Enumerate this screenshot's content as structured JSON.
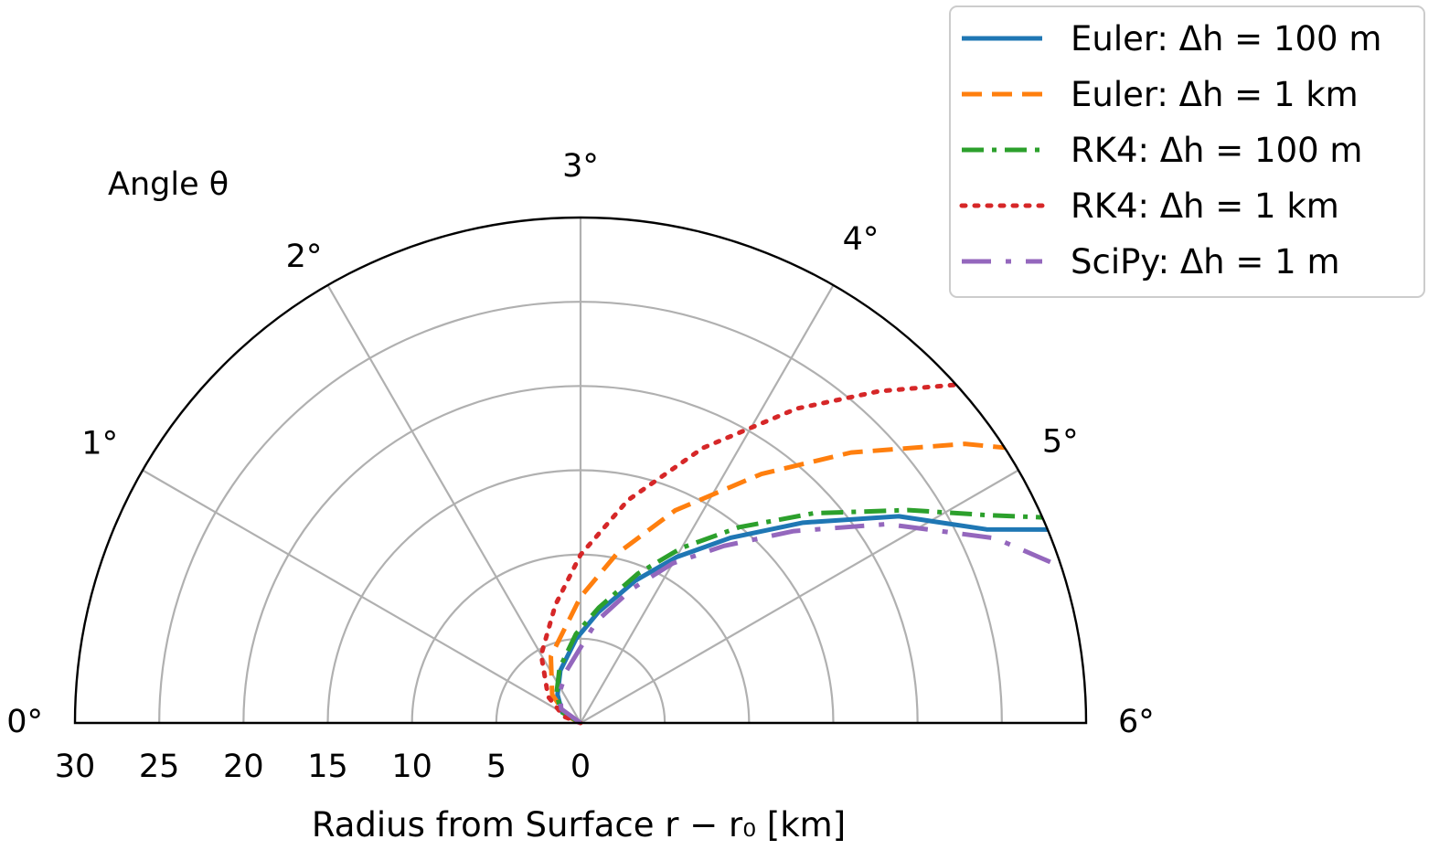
{
  "chart_data": {
    "type": "line",
    "projection": "polar",
    "theta_unit": "degree",
    "theta_range": [
      0,
      6
    ],
    "theta_ticks": [
      "0°",
      "1°",
      "2°",
      "3°",
      "4°",
      "5°",
      "6°"
    ],
    "theta_title": "Angle θ",
    "r_range": [
      0,
      30
    ],
    "r_tick_values": [
      30,
      25,
      20,
      15,
      10,
      5,
      0
    ],
    "r_tick_labels": [
      "30",
      "25",
      "20",
      "15",
      "10",
      "5",
      "0"
    ],
    "xlabel": "Radius from Surface r − r₀  [km]",
    "grid": true,
    "legend": "top-right",
    "series": [
      {
        "name": "Euler: Δh = 100 m",
        "color": "#1f77b4",
        "style": "solid",
        "points": [
          {
            "theta": 0,
            "r": 0
          },
          {
            "theta": 1.0,
            "r": 1.26
          },
          {
            "theta": 1.7,
            "r": 2.17
          },
          {
            "theta": 2.3,
            "r": 3.34
          },
          {
            "theta": 2.9,
            "r": 5.0
          },
          {
            "theta": 3.3,
            "r": 6.64
          },
          {
            "theta": 3.7,
            "r": 9.04
          },
          {
            "theta": 4.0,
            "r": 11.36
          },
          {
            "theta": 4.3,
            "r": 14.14
          },
          {
            "theta": 4.6,
            "r": 17.77
          },
          {
            "theta": 4.9,
            "r": 22.52
          },
          {
            "theta": 5.15,
            "r": 26.69
          },
          {
            "theta": 5.25,
            "r": 30.0
          }
        ]
      },
      {
        "name": "Euler: Δh = 1 km",
        "color": "#ff7f0e",
        "style": "dashed",
        "points": [
          {
            "theta": 0,
            "r": 0
          },
          {
            "theta": 0.9,
            "r": 0.93
          },
          {
            "theta": 1.5,
            "r": 2.38
          },
          {
            "theta": 2.2,
            "r": 4.33
          },
          {
            "theta": 3.0,
            "r": 7.48
          },
          {
            "theta": 3.4,
            "r": 10.24
          },
          {
            "theta": 3.8,
            "r": 13.81
          },
          {
            "theta": 4.2,
            "r": 18.27
          },
          {
            "theta": 4.5,
            "r": 22.7
          },
          {
            "theta": 4.8,
            "r": 28.18
          },
          {
            "theta": 4.9,
            "r": 30.0
          }
        ]
      },
      {
        "name": "RK4: Δh = 100 m",
        "color": "#2ca02c",
        "style": "dashdot",
        "points": [
          {
            "theta": 0,
            "r": 0
          },
          {
            "theta": 1.0,
            "r": 1.34
          },
          {
            "theta": 1.7,
            "r": 2.26
          },
          {
            "theta": 2.3,
            "r": 3.48
          },
          {
            "theta": 2.9,
            "r": 5.28
          },
          {
            "theta": 3.3,
            "r": 6.93
          },
          {
            "theta": 3.7,
            "r": 9.49
          },
          {
            "theta": 4.0,
            "r": 12.0
          },
          {
            "theta": 4.3,
            "r": 14.95
          },
          {
            "theta": 4.6,
            "r": 18.6
          },
          {
            "theta": 4.9,
            "r": 23.2
          },
          {
            "theta": 5.1,
            "r": 27.16
          },
          {
            "theta": 5.2,
            "r": 30.0
          }
        ]
      },
      {
        "name": "RK4: Δh = 1 km",
        "color": "#d62728",
        "style": "dotted",
        "points": [
          {
            "theta": 0,
            "r": 0
          },
          {
            "theta": 0.7,
            "r": 1.05
          },
          {
            "theta": 1.3,
            "r": 2.47
          },
          {
            "theta": 2.0,
            "r": 4.67
          },
          {
            "theta": 2.6,
            "r": 7.17
          },
          {
            "theta": 3.0,
            "r": 9.98
          },
          {
            "theta": 3.4,
            "r": 13.52
          },
          {
            "theta": 3.8,
            "r": 17.87
          },
          {
            "theta": 4.15,
            "r": 22.64
          },
          {
            "theta": 4.4,
            "r": 26.5
          },
          {
            "theta": 4.6,
            "r": 30.0
          }
        ]
      },
      {
        "name": "SciPy: Δh = 1 m",
        "color": "#9467bd",
        "style": "long-dash-dot",
        "points": [
          {
            "theta": 0,
            "r": 0
          },
          {
            "theta": 1.2,
            "r": 1.42
          },
          {
            "theta": 1.9,
            "r": 2.24
          },
          {
            "theta": 2.5,
            "r": 3.21
          },
          {
            "theta": 2.95,
            "r": 4.29
          },
          {
            "theta": 3.3,
            "r": 6.11
          },
          {
            "theta": 3.7,
            "r": 8.53
          },
          {
            "theta": 4.0,
            "r": 10.94
          },
          {
            "theta": 4.3,
            "r": 13.52
          },
          {
            "theta": 4.6,
            "r": 17.02
          },
          {
            "theta": 4.9,
            "r": 21.67
          },
          {
            "theta": 5.2,
            "r": 26.95
          },
          {
            "theta": 5.4,
            "r": 30.0
          }
        ]
      }
    ]
  }
}
